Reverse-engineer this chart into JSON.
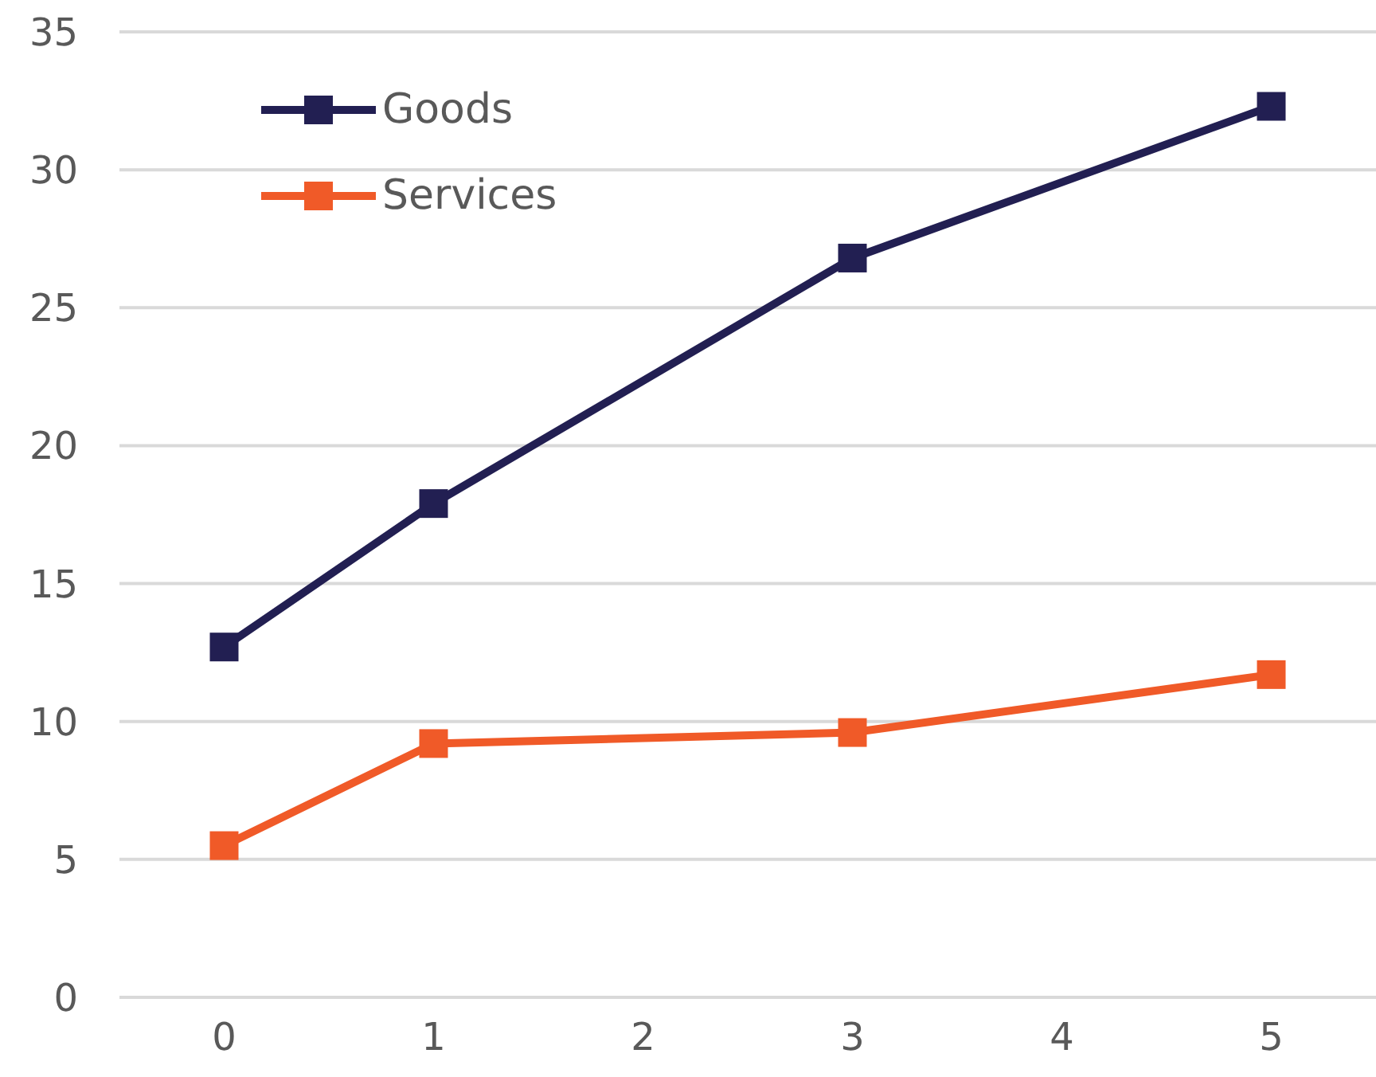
{
  "chart_data": {
    "type": "line",
    "x": [
      0,
      1,
      3,
      5
    ],
    "series": [
      {
        "name": "Goods",
        "color": "#221f52",
        "values": [
          12.7,
          17.9,
          26.8,
          32.3
        ]
      },
      {
        "name": "Services",
        "color": "#f05a28",
        "values": [
          5.5,
          9.2,
          9.6,
          11.7
        ]
      }
    ],
    "xlim": [
      -0.5,
      5.5
    ],
    "xticks": [
      0,
      1,
      2,
      3,
      4,
      5
    ],
    "ylim": [
      0,
      35
    ],
    "yticks": [
      0,
      5,
      10,
      15,
      20,
      25,
      30,
      35
    ],
    "grid": "y",
    "legend": "top left",
    "marker": "square",
    "line_style": "solid"
  }
}
